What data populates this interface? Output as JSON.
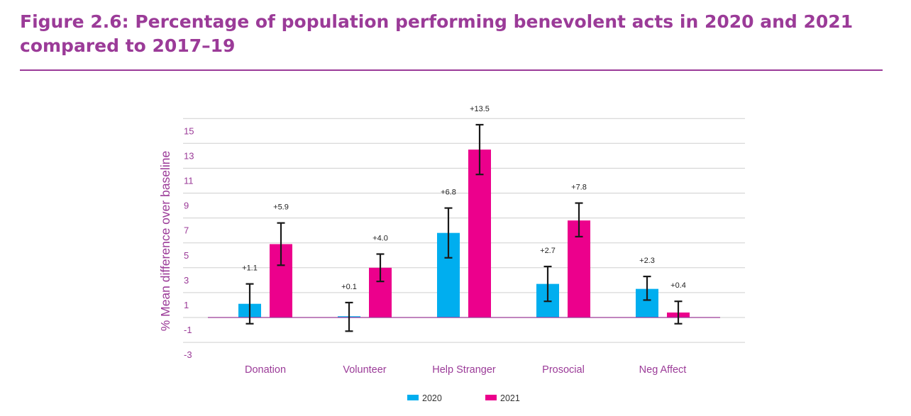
{
  "figure": {
    "title": "Figure 2.6: Percentage of population performing benevolent acts in 2020 and 2021 compared to 2017–19"
  },
  "colors": {
    "title": "#9b3b98",
    "s2020": "#00aeef",
    "s2021": "#ec008c",
    "grid": "#cfcfcf",
    "zero": "#9b3b98",
    "error": "#1a1a1a"
  },
  "chart_data": {
    "type": "bar",
    "title": "Percentage of population performing benevolent acts in 2020 and 2021 compared to 2017–19",
    "xlabel": "",
    "ylabel": "% Mean difference over baseline",
    "ylim": [
      -4,
      16
    ],
    "yticks": [
      15,
      13,
      11,
      9,
      7,
      5,
      3,
      1,
      -1,
      -3
    ],
    "categories": [
      "Donation",
      "Volunteer",
      "Help Stranger",
      "Prosocial",
      "Neg Affect"
    ],
    "series": [
      {
        "name": "2020",
        "values": [
          1.1,
          0.1,
          6.8,
          2.7,
          2.3
        ],
        "labels": [
          "+1.1",
          "+0.1",
          "+6.8",
          "+2.7",
          "+2.3"
        ],
        "error_low": [
          -0.5,
          -1.1,
          4.8,
          1.3,
          1.4
        ],
        "error_high": [
          2.7,
          1.2,
          8.8,
          4.1,
          3.3
        ]
      },
      {
        "name": "2021",
        "values": [
          5.9,
          4.0,
          13.5,
          7.8,
          0.4
        ],
        "labels": [
          "+5.9",
          "+4.0",
          "+13.5",
          "+7.8",
          "+0.4"
        ],
        "error_low": [
          4.2,
          2.9,
          11.5,
          6.5,
          -0.5
        ],
        "error_high": [
          7.6,
          5.1,
          15.5,
          9.2,
          1.3
        ]
      }
    ],
    "grid": true,
    "legend": "bottom-center"
  }
}
